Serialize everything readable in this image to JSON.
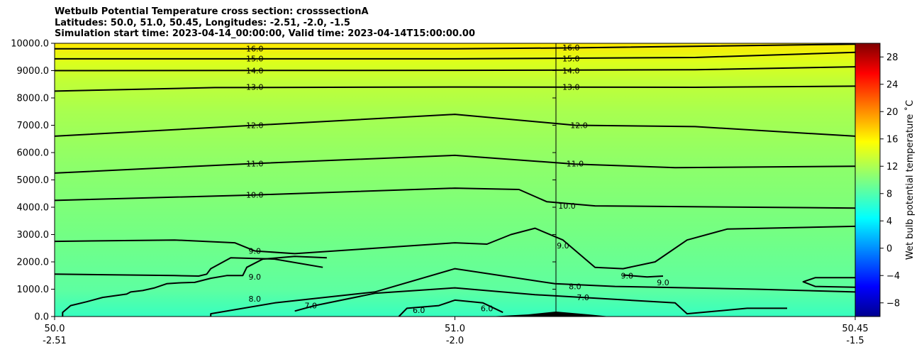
{
  "title_lines": [
    "Wetbulb Potential Temperature cross section: crosssectionA",
    "Latitudes: 50.0, 51.0, 50.45, Longitudes: -2.51, -2.0, -1.5",
    "Simulation start time: 2023-04-14_00:00:00, Valid time: 2023-04-14T15:00:00.00"
  ],
  "chart_data": {
    "type": "heatmap",
    "subtype": "filled contour cross section with labelled contour lines",
    "colormap": "jet",
    "y_range": [
      0,
      10000
    ],
    "y_ticks": [
      "0.0",
      "1000.0",
      "2000.0",
      "3000.0",
      "4000.0",
      "5000.0",
      "6000.0",
      "7000.0",
      "8000.0",
      "9000.0",
      "10000.0"
    ],
    "x_ticks": [
      {
        "lat": "50.0",
        "lon": "-2.51"
      },
      {
        "lat": "51.0",
        "lon": "-2.0"
      },
      {
        "lat": "50.45",
        "lon": "-1.5"
      }
    ],
    "colorbar": {
      "label": "Wet bulb potential temperature ˚C",
      "range": [
        -10,
        30
      ],
      "ticks": [
        "−8",
        "−4",
        "0",
        "4",
        "8",
        "12",
        "16",
        "20",
        "24",
        "28"
      ]
    },
    "contours": [
      {
        "level": "16.0",
        "label_positions": [
          [
            0.5,
            9800
          ],
          [
            1.29,
            9840
          ]
        ]
      },
      {
        "level": "15.0",
        "label_positions": [
          [
            0.5,
            9440
          ],
          [
            1.29,
            9440
          ]
        ]
      },
      {
        "level": "14.0",
        "label_positions": [
          [
            0.5,
            9000
          ],
          [
            1.29,
            9000
          ]
        ]
      },
      {
        "level": "13.0",
        "label_positions": [
          [
            0.5,
            8400
          ],
          [
            1.29,
            8400
          ]
        ]
      },
      {
        "level": "12.0",
        "label_positions": [
          [
            0.5,
            7000
          ],
          [
            1.31,
            7000
          ]
        ]
      },
      {
        "level": "11.0",
        "label_positions": [
          [
            0.5,
            5600
          ],
          [
            1.3,
            5600
          ]
        ]
      },
      {
        "level": "10.0",
        "label_positions": [
          [
            0.5,
            4450
          ],
          [
            1.28,
            4050
          ]
        ]
      },
      {
        "level": "9.0",
        "label_positions": [
          [
            0.5,
            2400
          ],
          [
            0.5,
            1450
          ],
          [
            1.27,
            2600
          ],
          [
            1.43,
            1500
          ],
          [
            1.52,
            1250
          ]
        ]
      },
      {
        "level": "8.0",
        "label_positions": [
          [
            0.5,
            650
          ],
          [
            1.3,
            1100
          ]
        ]
      },
      {
        "level": "7.0",
        "label_positions": [
          [
            0.64,
            400
          ],
          [
            1.32,
            700
          ]
        ]
      },
      {
        "level": "6.0",
        "label_positions": [
          [
            0.91,
            240
          ],
          [
            1.08,
            300
          ]
        ]
      }
    ]
  }
}
